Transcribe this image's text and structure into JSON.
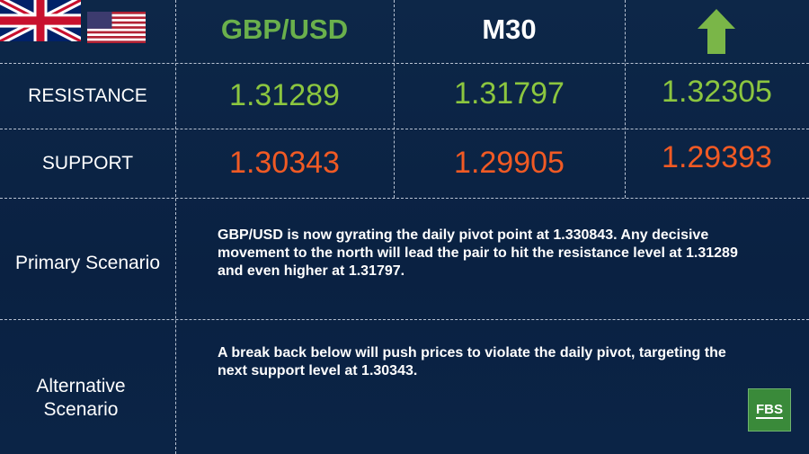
{
  "header": {
    "pair": "GBP/USD",
    "timeframe": "M30"
  },
  "resistance": {
    "label": "RESISTANCE",
    "levels": [
      "1.31289",
      "1.31797",
      "1.32305"
    ]
  },
  "support": {
    "label": "SUPPORT",
    "levels": [
      "1.30343",
      "1.29905",
      "1.29393"
    ]
  },
  "primary": {
    "label": "Primary Scenario",
    "text": "GBP/USD is now gyrating the daily pivot point at 1.330843. Any decisive movement to the north will lead the pair to hit the resistance level at 1.31289 and even higher at 1.31797."
  },
  "alternative": {
    "label": "Alternative Scenario",
    "text": "A break back below will push prices to violate the daily pivot, targeting the next support level at 1.30343."
  },
  "logo": "FBS"
}
